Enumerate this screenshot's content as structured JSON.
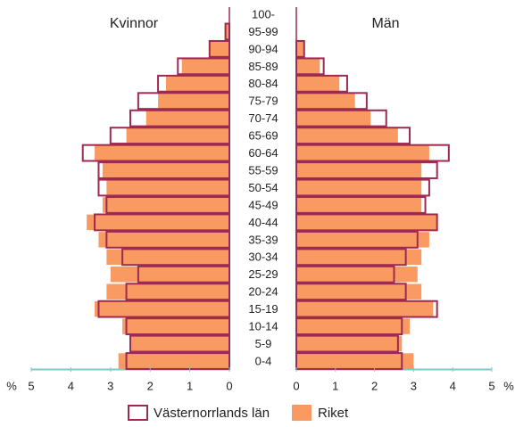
{
  "chart_data": {
    "type": "pyramid",
    "women_title": "Kvinnor",
    "men_title": "Män",
    "unit": "%",
    "categories": [
      "0-4",
      "5-9",
      "10-14",
      "15-19",
      "20-24",
      "25-29",
      "30-34",
      "35-39",
      "40-44",
      "45-49",
      "50-54",
      "55-59",
      "60-64",
      "65-69",
      "70-74",
      "75-79",
      "80-84",
      "85-89",
      "90-94",
      "95-99",
      "100-"
    ],
    "xlim": [
      0,
      5
    ],
    "xticks": [
      0,
      1,
      2,
      3,
      4,
      5
    ],
    "series": [
      {
        "name": "Riket",
        "color": "#f99a62",
        "style": "filled",
        "women": [
          2.8,
          2.5,
          2.7,
          3.4,
          3.1,
          3.0,
          3.1,
          3.3,
          3.6,
          3.2,
          3.1,
          3.2,
          3.4,
          2.6,
          2.1,
          1.8,
          1.6,
          1.2,
          0.5,
          0.1,
          0
        ],
        "men": [
          3.0,
          2.7,
          2.9,
          3.5,
          3.2,
          3.1,
          3.2,
          3.4,
          3.6,
          3.2,
          3.2,
          3.2,
          3.4,
          2.6,
          1.9,
          1.5,
          1.1,
          0.6,
          0.2,
          0,
          0
        ]
      },
      {
        "name": "Västernorrlands län",
        "color": "#9e2a52",
        "style": "outline",
        "women": [
          2.6,
          2.5,
          2.6,
          3.3,
          2.6,
          2.3,
          2.7,
          3.1,
          3.4,
          3.1,
          3.3,
          3.3,
          3.7,
          3.0,
          2.5,
          2.3,
          1.8,
          1.3,
          0.5,
          0.1,
          0
        ],
        "men": [
          2.7,
          2.6,
          2.7,
          3.6,
          2.8,
          2.5,
          2.8,
          3.1,
          3.6,
          3.3,
          3.4,
          3.6,
          3.9,
          2.9,
          2.3,
          1.8,
          1.3,
          0.7,
          0.2,
          0,
          0
        ]
      }
    ]
  }
}
